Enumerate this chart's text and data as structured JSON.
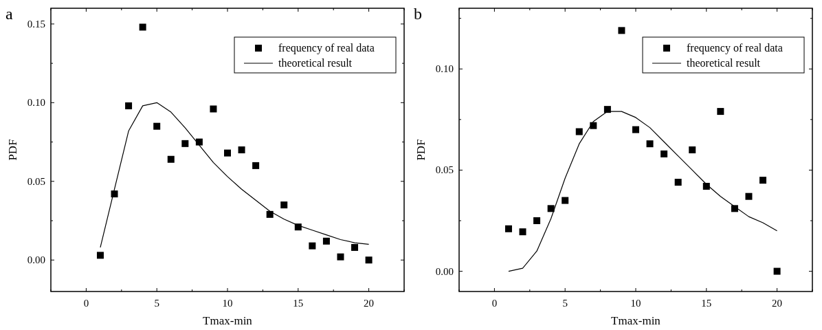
{
  "chart_data": [
    {
      "type": "scatter",
      "xlabel": "Tmax-min",
      "ylabel": "PDF",
      "annotations": [
        "a"
      ],
      "legend": "top right",
      "x": [
        1,
        2,
        3,
        4,
        5,
        6,
        7,
        8,
        9,
        10,
        11,
        12,
        13,
        14,
        15,
        16,
        17,
        18,
        19,
        20
      ],
      "xlim": [
        -2.5,
        22.5
      ],
      "xticks": [
        {
          "value": -2.5,
          "label": null
        },
        0,
        {
          "value": 2.5,
          "label": null
        },
        5,
        {
          "value": 7.5,
          "label": null
        },
        10,
        {
          "value": 12.5,
          "label": null
        },
        15,
        {
          "value": 17.5,
          "label": null
        },
        20,
        {
          "value": 22.5,
          "label": null
        }
      ],
      "ylim": [
        -0.02,
        0.16
      ],
      "yticks": [
        {
          "value": 0,
          "label": "0.00"
        },
        {
          "value": 0.025,
          "label": null
        },
        {
          "value": 0.05,
          "label": "0.05"
        },
        {
          "value": 0.075,
          "label": null
        },
        {
          "value": 0.1,
          "label": "0.10"
        },
        {
          "value": 0.125,
          "label": null
        },
        {
          "value": 0.15,
          "label": "0.15"
        }
      ],
      "series": [
        {
          "name": "frequency of real data",
          "marker": "square",
          "color": "#000000",
          "values": [
            0.003,
            0.042,
            0.098,
            0.148,
            0.085,
            0.064,
            0.074,
            0.075,
            0.096,
            0.068,
            0.07,
            0.06,
            0.029,
            0.035,
            0.021,
            0.009,
            0.012,
            0.002,
            0.008,
            0.0
          ]
        },
        {
          "name": "theoretical result",
          "type": "line",
          "marker": "none",
          "line_style": "solid",
          "color": "#000000",
          "values": [
            0.008,
            0.045,
            0.082,
            0.098,
            0.1,
            0.094,
            0.084,
            0.073,
            0.062,
            0.053,
            0.045,
            0.038,
            0.031,
            0.026,
            0.022,
            0.019,
            0.016,
            0.013,
            0.011,
            0.01
          ]
        }
      ]
    },
    {
      "type": "scatter",
      "xlabel": "Tmax-min",
      "ylabel": "PDF",
      "annotations": [
        "b"
      ],
      "legend": "top right",
      "x": [
        1,
        2,
        3,
        4,
        5,
        6,
        7,
        8,
        9,
        10,
        11,
        12,
        13,
        14,
        15,
        16,
        17,
        18,
        19,
        20
      ],
      "xlim": [
        -2.5,
        22.5
      ],
      "xticks": [
        {
          "value": -2.5,
          "label": null
        },
        0,
        {
          "value": 2.5,
          "label": null
        },
        5,
        {
          "value": 7.5,
          "label": null
        },
        10,
        {
          "value": 12.5,
          "label": null
        },
        15,
        {
          "value": 17.5,
          "label": null
        },
        20,
        {
          "value": 22.5,
          "label": null
        }
      ],
      "ylim": [
        -0.01,
        0.13
      ],
      "yticks": [
        {
          "value": 0,
          "label": "0.00"
        },
        {
          "value": 0.025,
          "label": null
        },
        {
          "value": 0.05,
          "label": "0.05"
        },
        {
          "value": 0.075,
          "label": null
        },
        {
          "value": 0.1,
          "label": "0.10"
        },
        {
          "value": 0.125,
          "label": null
        }
      ],
      "series": [
        {
          "name": "frequency of real data",
          "marker": "square",
          "color": "#000000",
          "values": [
            0.021,
            0.0195,
            0.025,
            0.031,
            0.035,
            0.069,
            0.072,
            0.08,
            0.119,
            0.07,
            0.063,
            0.058,
            0.044,
            0.06,
            0.042,
            0.079,
            0.031,
            0.037,
            0.045,
            0.0
          ]
        },
        {
          "name": "theoretical result",
          "type": "line",
          "marker": "none",
          "line_style": "solid",
          "color": "#000000",
          "values": [
            0.0,
            0.0015,
            0.01,
            0.026,
            0.046,
            0.063,
            0.074,
            0.079,
            0.079,
            0.076,
            0.071,
            0.064,
            0.057,
            0.05,
            0.043,
            0.037,
            0.032,
            0.027,
            0.024,
            0.02
          ]
        }
      ]
    }
  ]
}
